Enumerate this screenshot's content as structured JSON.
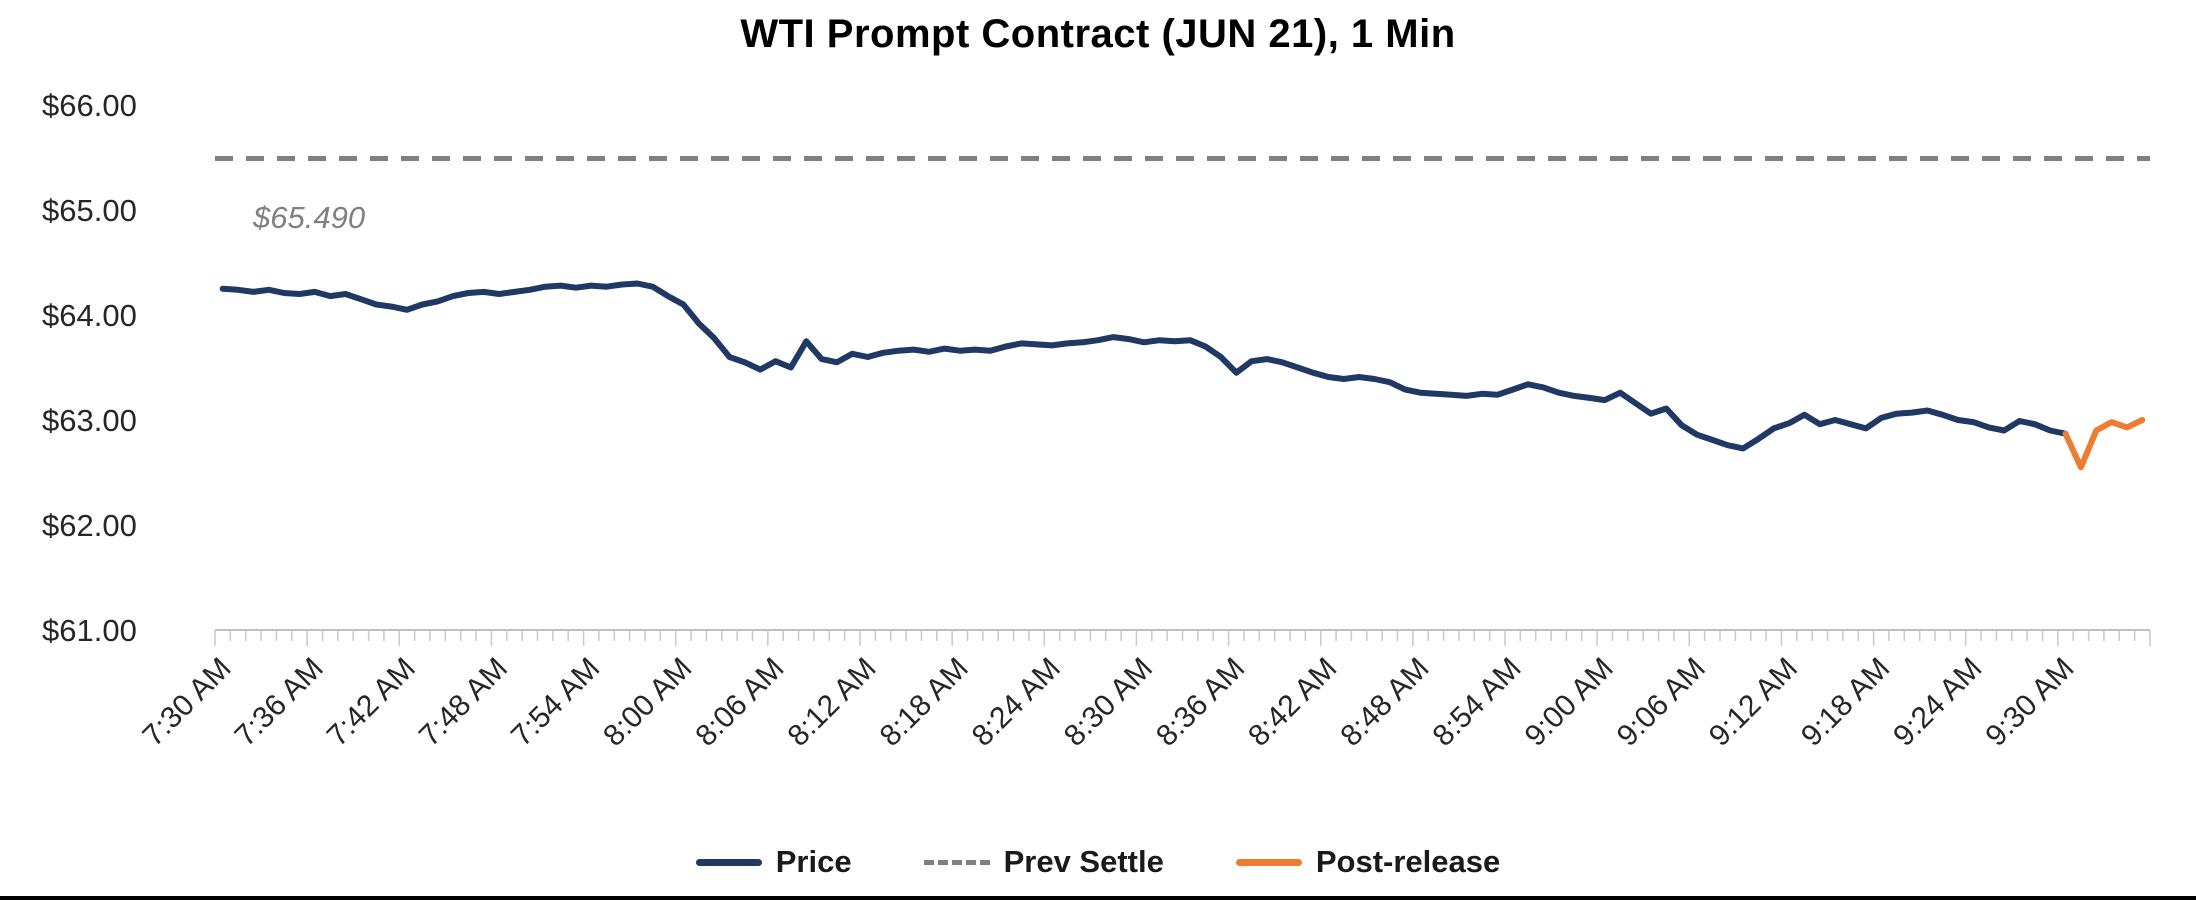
{
  "title": "WTI Prompt Contract (JUN 21), 1 Min",
  "colors": {
    "price": "#1F3864",
    "prev_settle": "#808080",
    "post_release": "#ED7D31",
    "axis_line": "#BFBFBF",
    "tick_mark": "#C9C9C9",
    "axis_label": "#262626",
    "title_text": "#000000"
  },
  "legend": {
    "items": [
      {
        "label": "Price",
        "color": "#1F3864",
        "style": "solid"
      },
      {
        "label": "Prev Settle",
        "color": "#808080",
        "style": "dashed"
      },
      {
        "label": "Post-release",
        "color": "#ED7D31",
        "style": "solid"
      }
    ]
  },
  "chart_data": {
    "type": "line",
    "title": "WTI Prompt Contract (JUN 21), 1 Min",
    "xlabel": "",
    "ylabel": "",
    "ylim": [
      61,
      66
    ],
    "grid": false,
    "legend_position": "bottom",
    "interval_minutes": 1,
    "total_slots": 126,
    "label_every": 6,
    "y_tick_values": [
      66,
      65,
      64,
      63,
      62,
      61
    ],
    "y_tick_labels": [
      "$66.00",
      "$65.00",
      "$64.00",
      "$63.00",
      "$62.00",
      "$61.00"
    ],
    "x_tick_labels": [
      "7:30 AM",
      "7:36 AM",
      "7:42 AM",
      "7:48 AM",
      "7:54 AM",
      "8:00 AM",
      "8:06 AM",
      "8:12 AM",
      "8:18 AM",
      "8:24 AM",
      "8:30 AM",
      "8:36 AM",
      "8:42 AM",
      "8:48 AM",
      "8:54 AM",
      "9:00 AM",
      "9:06 AM",
      "9:12 AM",
      "9:18 AM",
      "9:24 AM",
      "9:30 AM"
    ],
    "prev_settle": 65.49,
    "prev_settle_label": "$65.490",
    "series": [
      {
        "name": "Price",
        "color": "#1F3864",
        "start_index": 0,
        "values": [
          64.25,
          64.24,
          64.22,
          64.24,
          64.21,
          64.2,
          64.22,
          64.18,
          64.2,
          64.15,
          64.1,
          64.08,
          64.05,
          64.1,
          64.13,
          64.18,
          64.21,
          64.22,
          64.2,
          64.22,
          64.24,
          64.27,
          64.28,
          64.26,
          64.28,
          64.27,
          64.29,
          64.3,
          64.27,
          64.18,
          64.1,
          63.92,
          63.78,
          63.6,
          63.55,
          63.48,
          63.56,
          63.5,
          63.75,
          63.58,
          63.55,
          63.63,
          63.6,
          63.64,
          63.66,
          63.67,
          63.65,
          63.68,
          63.66,
          63.67,
          63.66,
          63.7,
          63.73,
          63.72,
          63.71,
          63.73,
          63.74,
          63.76,
          63.79,
          63.77,
          63.74,
          63.76,
          63.75,
          63.76,
          63.7,
          63.6,
          63.45,
          63.56,
          63.58,
          63.55,
          63.5,
          63.45,
          63.41,
          63.39,
          63.41,
          63.39,
          63.36,
          63.29,
          63.26,
          63.25,
          63.24,
          63.23,
          63.25,
          63.24,
          63.29,
          63.34,
          63.31,
          63.26,
          63.23,
          63.21,
          63.19,
          63.26,
          63.16,
          63.06,
          63.11,
          62.95,
          62.86,
          62.81,
          62.76,
          62.73,
          62.82,
          62.92,
          62.97,
          63.05,
          62.96,
          63.0,
          62.96,
          62.92,
          63.02,
          63.06,
          63.07,
          63.09,
          63.05,
          63.0,
          62.98,
          62.93,
          62.9,
          62.99,
          62.96,
          62.9,
          62.87
        ]
      },
      {
        "name": "Post-release",
        "color": "#ED7D31",
        "start_index": 120,
        "values": [
          62.87,
          62.55,
          62.9,
          62.98,
          62.93,
          63.0
        ]
      }
    ]
  }
}
